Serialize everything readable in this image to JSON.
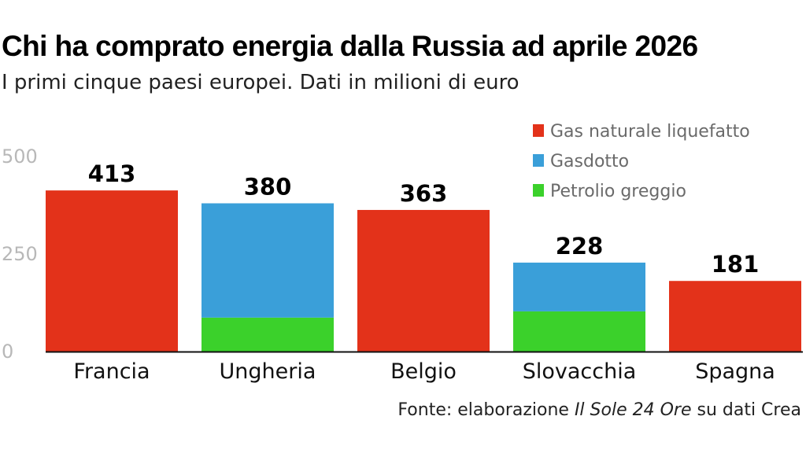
{
  "title": "Chi ha comprato energia dalla Russia ad aprile 2026",
  "subtitle": "I primi cinque paesi europei. Dati in milioni di euro",
  "source": {
    "prefix": "Fonte: elaborazione ",
    "publication": "Il Sole 24 Ore",
    "suffix": " su dati Crea"
  },
  "chart_data": {
    "type": "bar",
    "stacked": true,
    "categories": [
      "Francia",
      "Ungheria",
      "Belgio",
      "Slovacchia",
      "Spagna"
    ],
    "totals": [
      413,
      380,
      363,
      228,
      181
    ],
    "series": [
      {
        "name": "Petrolio greggio",
        "color": "#3bd12b",
        "values": [
          0,
          87,
          0,
          103,
          0
        ]
      },
      {
        "name": "Gasdotto",
        "color": "#3a9fd9",
        "values": [
          0,
          293,
          0,
          125,
          0
        ]
      },
      {
        "name": "Gas naturale liquefatto",
        "color": "#e3321a",
        "values": [
          413,
          0,
          363,
          0,
          181
        ]
      }
    ],
    "legend_order": [
      "Gas naturale liquefatto",
      "Gasdotto",
      "Petrolio greggio"
    ],
    "legend_position": "top-right",
    "yticks": [
      0,
      250,
      500
    ],
    "ylim": [
      0,
      500
    ],
    "grid": false
  }
}
